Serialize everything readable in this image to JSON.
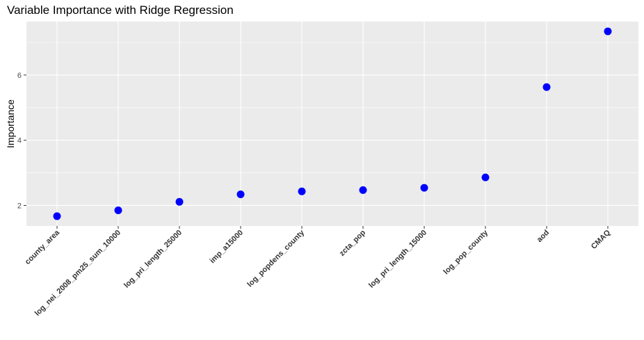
{
  "chart_data": {
    "type": "scatter",
    "title": "Variable Importance with Ridge Regression",
    "xlabel": "",
    "ylabel": "Importance",
    "categories": [
      "county_area",
      "log_nei_2008_pm25_sum_10000",
      "log_pri_length_25000",
      "imp_a15000",
      "log_popdens_county",
      "zcta_pop",
      "log_pri_length_15000",
      "log_pop_county",
      "aod",
      "CMAQ"
    ],
    "values": [
      1.67,
      1.85,
      2.11,
      2.34,
      2.43,
      2.47,
      2.54,
      2.86,
      5.63,
      7.34
    ],
    "yticks": [
      2,
      4,
      6
    ],
    "ylim": [
      1.37,
      7.64
    ],
    "grid": true,
    "point_color": "#0000FF",
    "panel_color": "#EBEBEB",
    "grid_color": "#FFFFFF"
  }
}
